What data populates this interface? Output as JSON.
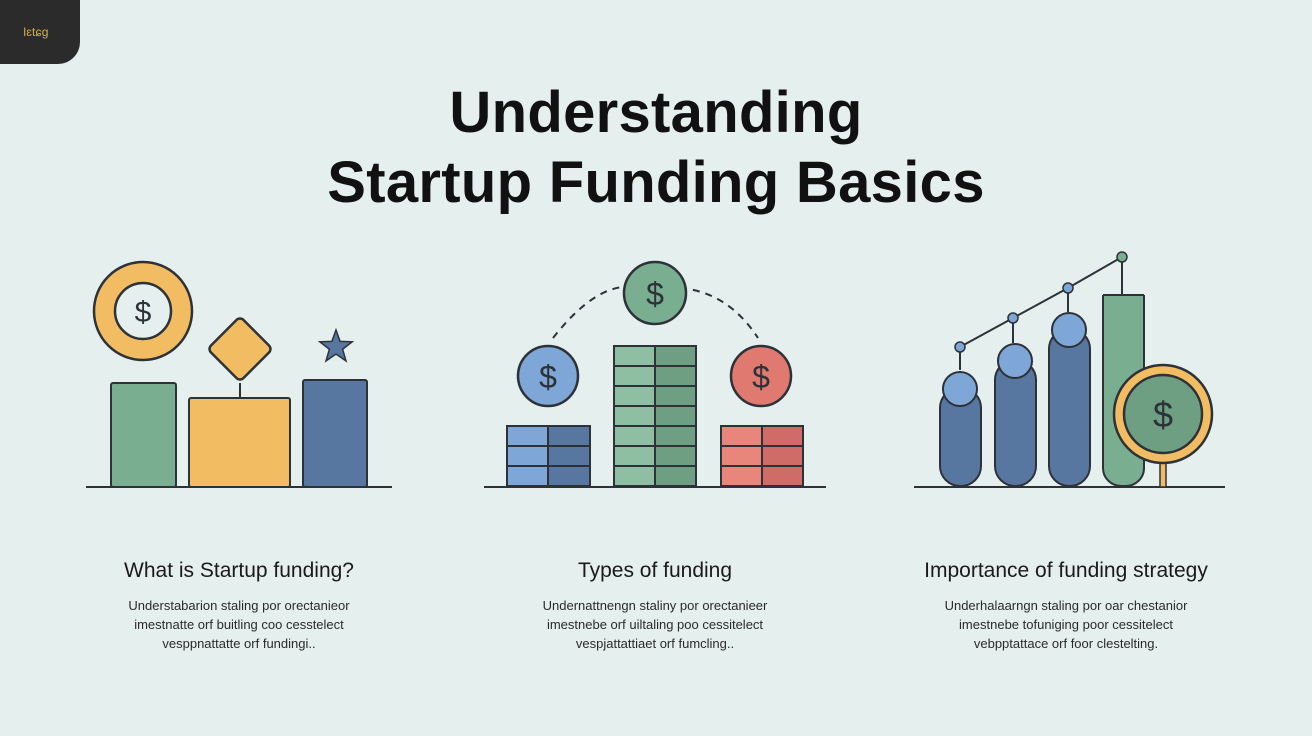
{
  "logo": {
    "text": "lɛtɕg"
  },
  "title": {
    "line1": "Understanding",
    "line2": "Startup Funding Basics"
  },
  "icons": {
    "currency_symbol": "$"
  },
  "colors": {
    "background": "#e4efee",
    "green": "#7aae90",
    "yellow": "#f2bd62",
    "blue": "#5877a0",
    "light_blue": "#7ea6d6",
    "red": "#e07a70",
    "outline": "#2d3138"
  },
  "sections": [
    {
      "heading": "What is Startup funding?",
      "body": [
        "Understabarion staling por orectanieor",
        "imestnatte orf buitling coo cesstelect",
        "vesppnattatte orf fundingi.."
      ]
    },
    {
      "heading": "Types of funding",
      "body": [
        "Undernattnengn staliny por orectanieer",
        "imestnebe orf uiltaling poo cessitelect",
        "vespjattattiaet orf fumcling.."
      ]
    },
    {
      "heading": "Importance of funding strategy",
      "body": [
        "Underhalaarngn staling por oar chestanior",
        "imestnebe tofuniging poor cessitelect",
        "vebpptattace orf foor clestelting."
      ]
    }
  ]
}
